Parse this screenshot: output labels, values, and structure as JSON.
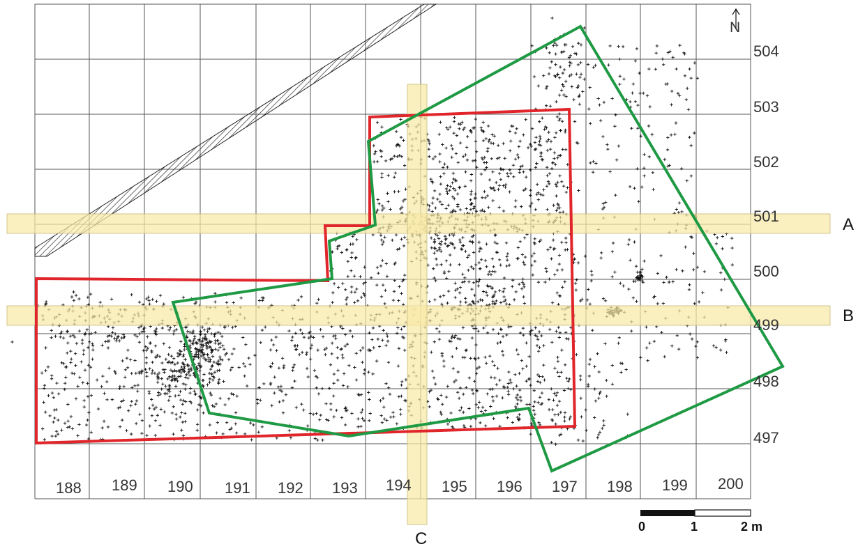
{
  "map": {
    "north_arrow": "N",
    "x_grid_labels": [
      "188",
      "189",
      "190",
      "191",
      "192",
      "193",
      "194",
      "195",
      "196",
      "197",
      "198",
      "199",
      "200"
    ],
    "y_grid_labels": [
      "504",
      "503",
      "502",
      "501",
      "500",
      "499",
      "498",
      "497"
    ],
    "sections": {
      "a": "A",
      "b": "B",
      "c": "C"
    },
    "scale_bar": {
      "zero": "0",
      "one": "1",
      "two": "2 m"
    },
    "colors": {
      "red_outline": "#e0262b",
      "green_outline": "#1f9a44",
      "section_band": "#f7e9a6",
      "grid": "#555555",
      "points": "#111111"
    }
  }
}
